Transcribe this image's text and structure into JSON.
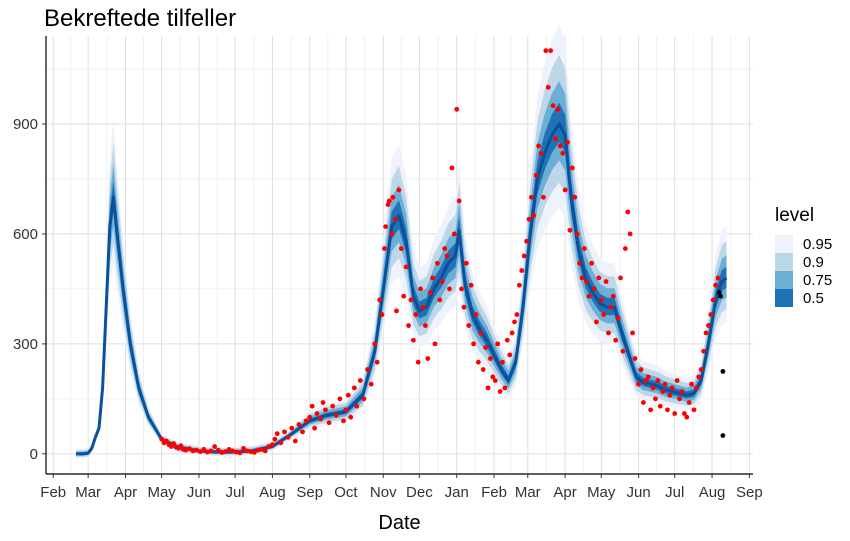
{
  "chart_data": {
    "type": "line",
    "title": "Bekreftede tilfeller",
    "xlabel": "Date",
    "ylabel": "",
    "x_ticks": [
      "Feb",
      "Mar",
      "Apr",
      "May",
      "Jun",
      "Jul",
      "Aug",
      "Sep",
      "Oct",
      "Nov",
      "Dec",
      "Jan",
      "Feb",
      "Mar",
      "Apr",
      "May",
      "Jun",
      "Jul",
      "Aug",
      "Sep"
    ],
    "x_tick_dates": [
      "2020-02-01",
      "2020-03-01",
      "2020-04-01",
      "2020-05-01",
      "2020-06-01",
      "2020-07-01",
      "2020-08-01",
      "2020-09-01",
      "2020-10-01",
      "2020-11-01",
      "2020-12-01",
      "2021-01-01",
      "2021-02-01",
      "2021-03-01",
      "2021-04-01",
      "2021-05-01",
      "2021-06-01",
      "2021-07-01",
      "2021-08-01",
      "2021-09-01"
    ],
    "y_ticks": [
      0,
      300,
      600,
      900
    ],
    "xlim": [
      "2020-01-26",
      "2021-09-04"
    ],
    "ylim": [
      -55,
      1140
    ],
    "grid": true,
    "legend": {
      "title": "level",
      "position": "right",
      "entries": [
        {
          "label": "0.95",
          "color": "#eef3fb"
        },
        {
          "label": "0.9",
          "color": "#bdd7e8"
        },
        {
          "label": "0.75",
          "color": "#6baed6"
        },
        {
          "label": "0.5",
          "color": "#2171b5"
        }
      ]
    },
    "median_color": "#08519c",
    "observed_color": "#ff0000",
    "future_color": "#000000",
    "median": {
      "x": [
        "2020-02-20",
        "2020-02-26",
        "2020-03-01",
        "2020-03-04",
        "2020-03-07",
        "2020-03-10",
        "2020-03-13",
        "2020-03-16",
        "2020-03-19",
        "2020-03-22",
        "2020-03-25",
        "2020-03-30",
        "2020-04-05",
        "2020-04-12",
        "2020-04-20",
        "2020-05-01",
        "2020-05-15",
        "2020-06-01",
        "2020-06-15",
        "2020-07-01",
        "2020-07-15",
        "2020-08-01",
        "2020-08-15",
        "2020-09-01",
        "2020-09-15",
        "2020-10-01",
        "2020-10-15",
        "2020-10-25",
        "2020-11-02",
        "2020-11-08",
        "2020-11-14",
        "2020-11-20",
        "2020-11-26",
        "2020-12-01",
        "2020-12-07",
        "2020-12-13",
        "2020-12-19",
        "2020-12-25",
        "2020-12-31",
        "2021-01-03",
        "2021-01-08",
        "2021-01-14",
        "2021-01-20",
        "2021-01-26",
        "2021-02-01",
        "2021-02-07",
        "2021-02-13",
        "2021-02-19",
        "2021-02-25",
        "2021-03-03",
        "2021-03-09",
        "2021-03-15",
        "2021-03-21",
        "2021-03-27",
        "2021-04-01",
        "2021-04-06",
        "2021-04-12",
        "2021-04-18",
        "2021-04-24",
        "2021-04-30",
        "2021-05-06",
        "2021-05-12",
        "2021-05-18",
        "2021-05-24",
        "2021-05-30",
        "2021-06-05",
        "2021-06-11",
        "2021-06-17",
        "2021-06-23",
        "2021-06-29",
        "2021-07-05",
        "2021-07-11",
        "2021-07-17",
        "2021-07-23",
        "2021-07-29",
        "2021-08-04",
        "2021-08-09",
        "2021-08-13"
      ],
      "y": [
        0,
        0,
        2,
        15,
        45,
        70,
        180,
        400,
        620,
        700,
        600,
        450,
        300,
        180,
        100,
        40,
        18,
        8,
        5,
        5,
        8,
        20,
        50,
        90,
        105,
        115,
        160,
        280,
        470,
        620,
        650,
        580,
        430,
        390,
        400,
        450,
        480,
        520,
        540,
        610,
        460,
        380,
        340,
        310,
        270,
        230,
        200,
        250,
        400,
        600,
        750,
        820,
        870,
        900,
        870,
        700,
        560,
        480,
        440,
        410,
        400,
        400,
        330,
        270,
        210,
        195,
        190,
        185,
        175,
        170,
        165,
        160,
        165,
        200,
        300,
        420,
        470,
        480
      ]
    },
    "band_half_widths": [
      {
        "level": "0.95",
        "frac": 0.3,
        "min": 14
      },
      {
        "level": "0.9",
        "frac": 0.21,
        "min": 10
      },
      {
        "level": "0.75",
        "frac": 0.13,
        "min": 6
      },
      {
        "level": "0.5",
        "frac": 0.065,
        "min": 3
      }
    ],
    "observed": [
      [
        "2020-05-01",
        40
      ],
      [
        "2020-05-03",
        30
      ],
      [
        "2020-05-05",
        35
      ],
      [
        "2020-05-07",
        25
      ],
      [
        "2020-05-09",
        20
      ],
      [
        "2020-05-11",
        28
      ],
      [
        "2020-05-13",
        18
      ],
      [
        "2020-05-15",
        15
      ],
      [
        "2020-05-17",
        22
      ],
      [
        "2020-05-19",
        12
      ],
      [
        "2020-05-21",
        10
      ],
      [
        "2020-05-24",
        14
      ],
      [
        "2020-05-27",
        8
      ],
      [
        "2020-05-30",
        10
      ],
      [
        "2020-06-02",
        6
      ],
      [
        "2020-06-05",
        12
      ],
      [
        "2020-06-08",
        5
      ],
      [
        "2020-06-11",
        8
      ],
      [
        "2020-06-14",
        20
      ],
      [
        "2020-06-17",
        10
      ],
      [
        "2020-06-20",
        4
      ],
      [
        "2020-06-23",
        6
      ],
      [
        "2020-06-26",
        12
      ],
      [
        "2020-06-29",
        8
      ],
      [
        "2020-07-02",
        5
      ],
      [
        "2020-07-05",
        3
      ],
      [
        "2020-07-08",
        15
      ],
      [
        "2020-07-11",
        8
      ],
      [
        "2020-07-14",
        6
      ],
      [
        "2020-07-17",
        4
      ],
      [
        "2020-07-20",
        10
      ],
      [
        "2020-07-23",
        12
      ],
      [
        "2020-07-26",
        8
      ],
      [
        "2020-07-29",
        20
      ],
      [
        "2020-08-01",
        25
      ],
      [
        "2020-08-03",
        40
      ],
      [
        "2020-08-05",
        55
      ],
      [
        "2020-08-08",
        30
      ],
      [
        "2020-08-11",
        60
      ],
      [
        "2020-08-14",
        45
      ],
      [
        "2020-08-17",
        70
      ],
      [
        "2020-08-20",
        35
      ],
      [
        "2020-08-23",
        80
      ],
      [
        "2020-08-26",
        60
      ],
      [
        "2020-08-29",
        90
      ],
      [
        "2020-09-01",
        100
      ],
      [
        "2020-09-03",
        130
      ],
      [
        "2020-09-05",
        70
      ],
      [
        "2020-09-07",
        110
      ],
      [
        "2020-09-10",
        95
      ],
      [
        "2020-09-12",
        140
      ],
      [
        "2020-09-14",
        120
      ],
      [
        "2020-09-17",
        85
      ],
      [
        "2020-09-20",
        130
      ],
      [
        "2020-09-23",
        105
      ],
      [
        "2020-09-26",
        150
      ],
      [
        "2020-09-29",
        90
      ],
      [
        "2020-10-01",
        120
      ],
      [
        "2020-10-03",
        160
      ],
      [
        "2020-10-05",
        100
      ],
      [
        "2020-10-08",
        180
      ],
      [
        "2020-10-10",
        130
      ],
      [
        "2020-10-13",
        200
      ],
      [
        "2020-10-16",
        150
      ],
      [
        "2020-10-19",
        230
      ],
      [
        "2020-10-22",
        190
      ],
      [
        "2020-10-25",
        300
      ],
      [
        "2020-10-27",
        250
      ],
      [
        "2020-10-29",
        420
      ],
      [
        "2020-10-31",
        380
      ],
      [
        "2020-11-02",
        560
      ],
      [
        "2020-11-03",
        620
      ],
      [
        "2020-11-05",
        680
      ],
      [
        "2020-11-06",
        690
      ],
      [
        "2020-11-08",
        600
      ],
      [
        "2020-11-09",
        700
      ],
      [
        "2020-11-11",
        640
      ],
      [
        "2020-11-12",
        390
      ],
      [
        "2020-11-14",
        720
      ],
      [
        "2020-11-16",
        560
      ],
      [
        "2020-11-18",
        430
      ],
      [
        "2020-11-20",
        510
      ],
      [
        "2020-11-22",
        350
      ],
      [
        "2020-11-24",
        420
      ],
      [
        "2020-11-26",
        310
      ],
      [
        "2020-11-28",
        380
      ],
      [
        "2020-11-30",
        250
      ],
      [
        "2020-12-02",
        450
      ],
      [
        "2020-12-04",
        400
      ],
      [
        "2020-12-06",
        350
      ],
      [
        "2020-12-08",
        260
      ],
      [
        "2020-12-10",
        440
      ],
      [
        "2020-12-12",
        480
      ],
      [
        "2020-12-14",
        300
      ],
      [
        "2020-12-16",
        520
      ],
      [
        "2020-12-18",
        420
      ],
      [
        "2020-12-20",
        470
      ],
      [
        "2020-12-22",
        560
      ],
      [
        "2020-12-24",
        540
      ],
      [
        "2020-12-26",
        450
      ],
      [
        "2020-12-28",
        780
      ],
      [
        "2020-12-30",
        600
      ],
      [
        "2021-01-01",
        940
      ],
      [
        "2021-01-03",
        690
      ],
      [
        "2021-01-05",
        450
      ],
      [
        "2021-01-07",
        400
      ],
      [
        "2021-01-09",
        520
      ],
      [
        "2021-01-11",
        350
      ],
      [
        "2021-01-13",
        460
      ],
      [
        "2021-01-15",
        300
      ],
      [
        "2021-01-17",
        380
      ],
      [
        "2021-01-19",
        250
      ],
      [
        "2021-01-21",
        330
      ],
      [
        "2021-01-23",
        230
      ],
      [
        "2021-01-25",
        290
      ],
      [
        "2021-01-27",
        180
      ],
      [
        "2021-01-29",
        260
      ],
      [
        "2021-01-31",
        210
      ],
      [
        "2021-02-02",
        200
      ],
      [
        "2021-02-04",
        300
      ],
      [
        "2021-02-06",
        170
      ],
      [
        "2021-02-08",
        250
      ],
      [
        "2021-02-10",
        180
      ],
      [
        "2021-02-12",
        310
      ],
      [
        "2021-02-14",
        270
      ],
      [
        "2021-02-16",
        330
      ],
      [
        "2021-02-18",
        360
      ],
      [
        "2021-02-20",
        380
      ],
      [
        "2021-02-22",
        460
      ],
      [
        "2021-02-24",
        500
      ],
      [
        "2021-02-26",
        540
      ],
      [
        "2021-02-28",
        580
      ],
      [
        "2021-03-02",
        640
      ],
      [
        "2021-03-04",
        700
      ],
      [
        "2021-03-06",
        650
      ],
      [
        "2021-03-08",
        760
      ],
      [
        "2021-03-10",
        840
      ],
      [
        "2021-03-12",
        820
      ],
      [
        "2021-03-14",
        700
      ],
      [
        "2021-03-16",
        1100
      ],
      [
        "2021-03-18",
        1000
      ],
      [
        "2021-03-20",
        1100
      ],
      [
        "2021-03-22",
        950
      ],
      [
        "2021-03-24",
        860
      ],
      [
        "2021-03-26",
        940
      ],
      [
        "2021-03-28",
        840
      ],
      [
        "2021-03-30",
        820
      ],
      [
        "2021-04-01",
        720
      ],
      [
        "2021-04-03",
        850
      ],
      [
        "2021-04-05",
        610
      ],
      [
        "2021-04-07",
        780
      ],
      [
        "2021-04-09",
        700
      ],
      [
        "2021-04-11",
        600
      ],
      [
        "2021-04-13",
        520
      ],
      [
        "2021-04-15",
        480
      ],
      [
        "2021-04-17",
        560
      ],
      [
        "2021-04-19",
        470
      ],
      [
        "2021-04-21",
        430
      ],
      [
        "2021-04-23",
        520
      ],
      [
        "2021-04-25",
        450
      ],
      [
        "2021-04-27",
        360
      ],
      [
        "2021-04-29",
        480
      ],
      [
        "2021-05-01",
        420
      ],
      [
        "2021-05-03",
        380
      ],
      [
        "2021-05-05",
        470
      ],
      [
        "2021-05-07",
        330
      ],
      [
        "2021-05-09",
        400
      ],
      [
        "2021-05-11",
        430
      ],
      [
        "2021-05-13",
        310
      ],
      [
        "2021-05-15",
        370
      ],
      [
        "2021-05-17",
        480
      ],
      [
        "2021-05-19",
        280
      ],
      [
        "2021-05-21",
        560
      ],
      [
        "2021-05-23",
        660
      ],
      [
        "2021-05-25",
        600
      ],
      [
        "2021-05-27",
        330
      ],
      [
        "2021-05-29",
        260
      ],
      [
        "2021-06-01",
        190
      ],
      [
        "2021-06-03",
        230
      ],
      [
        "2021-06-05",
        140
      ],
      [
        "2021-06-07",
        200
      ],
      [
        "2021-06-09",
        210
      ],
      [
        "2021-06-11",
        120
      ],
      [
        "2021-06-13",
        180
      ],
      [
        "2021-06-15",
        150
      ],
      [
        "2021-06-17",
        200
      ],
      [
        "2021-06-19",
        130
      ],
      [
        "2021-06-21",
        170
      ],
      [
        "2021-06-23",
        190
      ],
      [
        "2021-06-25",
        120
      ],
      [
        "2021-06-27",
        160
      ],
      [
        "2021-06-29",
        180
      ],
      [
        "2021-07-01",
        110
      ],
      [
        "2021-07-03",
        200
      ],
      [
        "2021-07-05",
        150
      ],
      [
        "2021-07-07",
        170
      ],
      [
        "2021-07-09",
        110
      ],
      [
        "2021-07-11",
        100
      ],
      [
        "2021-07-13",
        140
      ],
      [
        "2021-07-15",
        190
      ],
      [
        "2021-07-17",
        120
      ],
      [
        "2021-07-19",
        180
      ],
      [
        "2021-07-21",
        210
      ],
      [
        "2021-07-23",
        230
      ],
      [
        "2021-07-25",
        280
      ],
      [
        "2021-07-27",
        330
      ],
      [
        "2021-07-29",
        350
      ],
      [
        "2021-07-31",
        380
      ],
      [
        "2021-08-02",
        420
      ],
      [
        "2021-08-04",
        460
      ],
      [
        "2021-08-06",
        480
      ]
    ],
    "future": [
      [
        "2021-08-07",
        440
      ],
      [
        "2021-08-08",
        430
      ],
      [
        "2021-08-10",
        225
      ],
      [
        "2021-08-10",
        50
      ]
    ]
  }
}
